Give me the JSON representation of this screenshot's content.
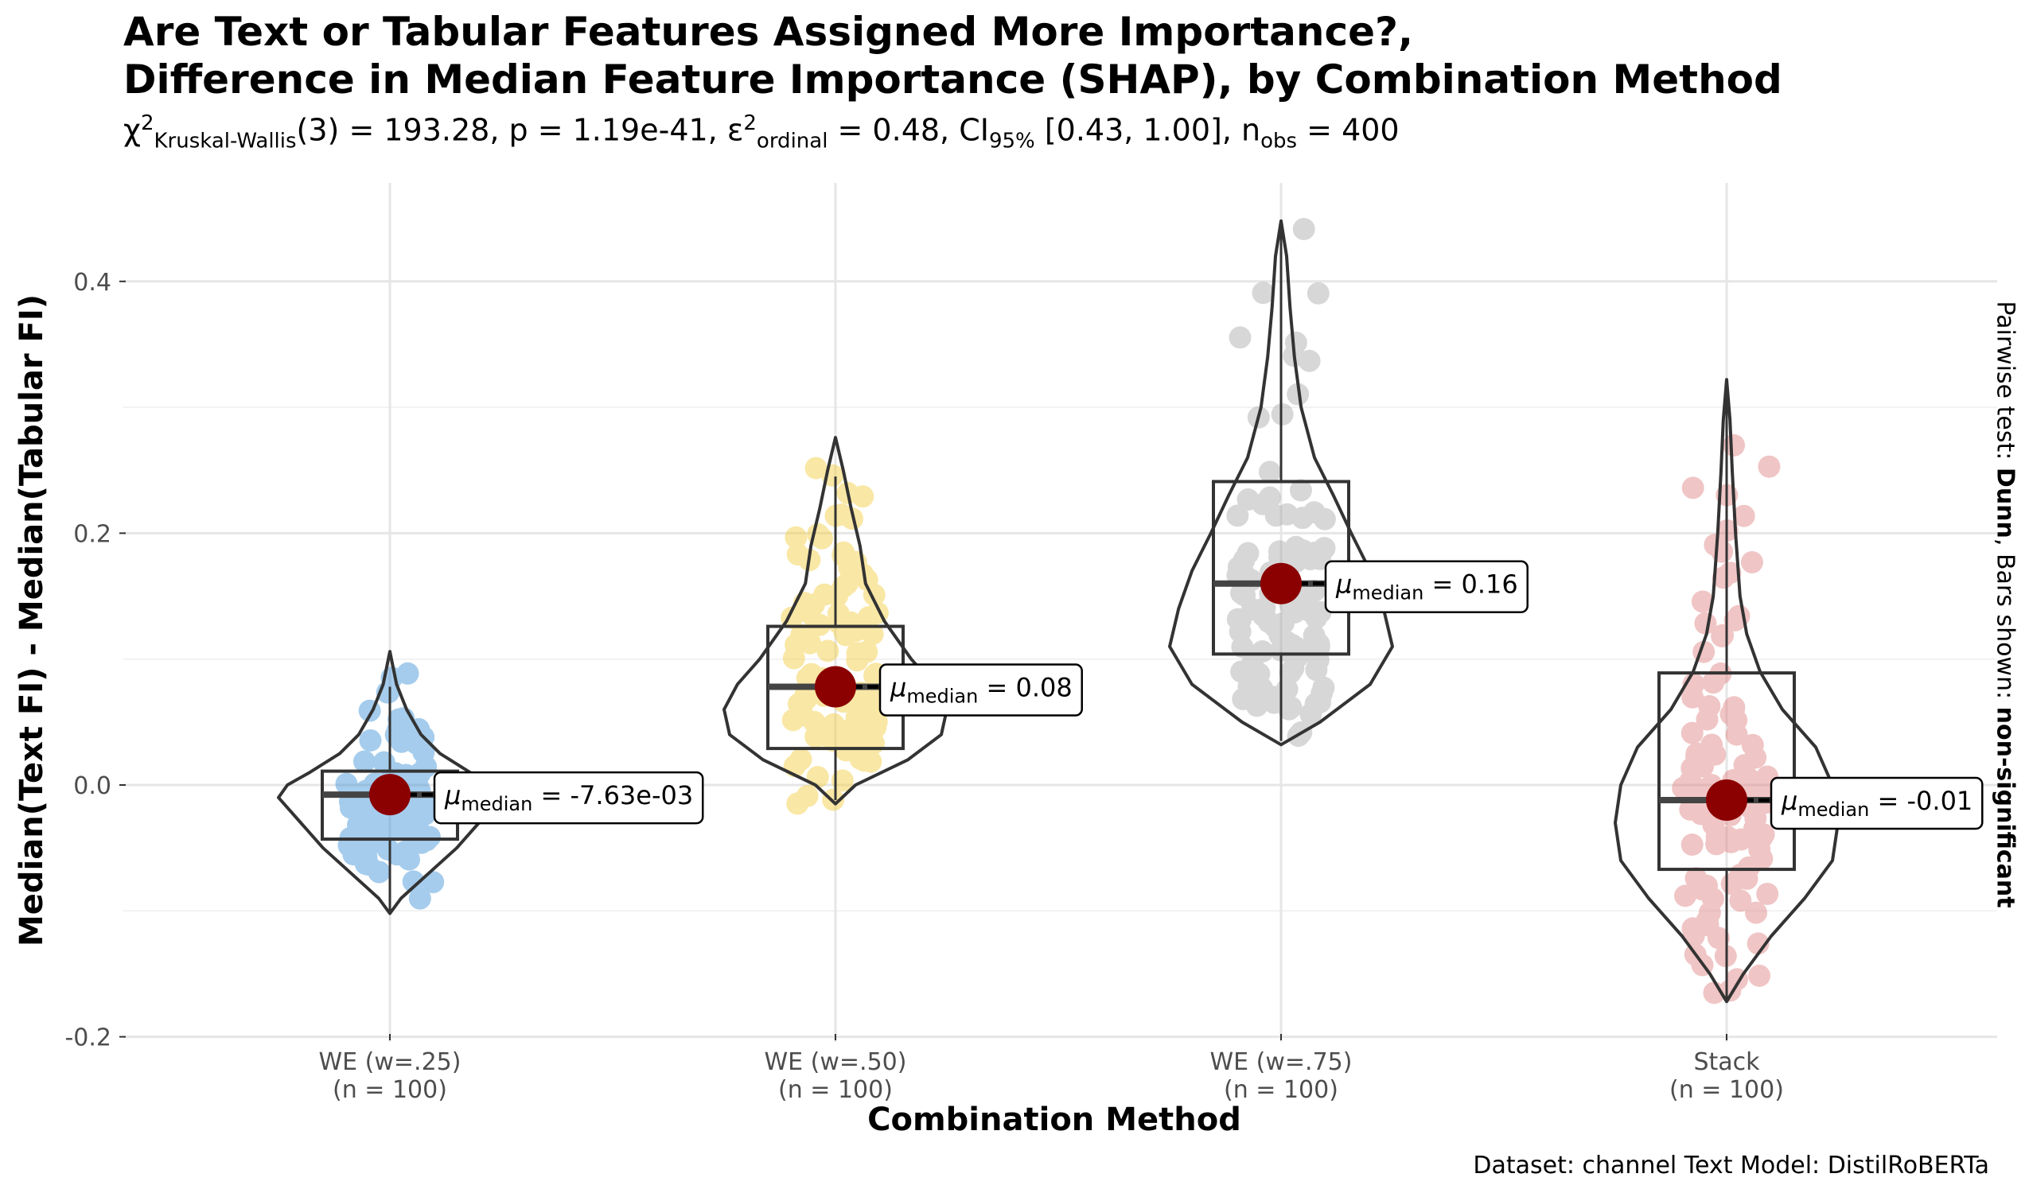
{
  "title_line1": "Are Text or Tabular Features Assigned More Importance?,",
  "title_line2": "Difference in Median Feature Importance (SHAP), by Combination Method",
  "stats": {
    "chi_base": "χ",
    "chi_sup": "2",
    "chi_sub": "Kruskal-Wallis",
    "chi_val": "(3) = 193.28, p = 1.19e-41, ",
    "eps_base": "ε",
    "eps_sup": "2",
    "eps_sub": "ordinal",
    "eps_val": " = 0.48, CI",
    "ci_sub": "95%",
    "ci_val": " [0.43, 1.00], n",
    "n_sub": "obs",
    "n_val": " = 400"
  },
  "ylabel": "Median(Text FI) - Median(Tabular FI)",
  "xlabel": "Combination Method",
  "right_label": {
    "part1": "Pairwise test: ",
    "part2": "Dunn",
    "part3": ", Bars shown: ",
    "part4": "non-significant"
  },
  "caption": "Dataset:  channel Text Model:  DistilRoBERTa",
  "chart_data": {
    "type": "violin",
    "ylim": [
      -0.2,
      0.45
    ],
    "yticks": [
      -0.2,
      0.0,
      0.2,
      0.4
    ],
    "ytick_labels": [
      "-0.2",
      "0.0",
      "0.2",
      "0.4"
    ],
    "grid": true,
    "groups": [
      {
        "name": "WE (w=.25)",
        "n_label": "(n = 100)",
        "color": "#3A8FD6",
        "median": -0.00763,
        "q1": -0.043,
        "q3": 0.011,
        "whisker_low": -0.1,
        "whisker_high": 0.078,
        "min": -0.102,
        "max": 0.106,
        "label_sub": "median",
        "label_val": "= -7.63e-03",
        "density": [
          [
            -0.102,
            0.0
          ],
          [
            -0.09,
            0.1
          ],
          [
            -0.07,
            0.35
          ],
          [
            -0.05,
            0.6
          ],
          [
            -0.03,
            0.8
          ],
          [
            -0.01,
            1.0
          ],
          [
            0.0,
            0.92
          ],
          [
            0.01,
            0.72
          ],
          [
            0.025,
            0.45
          ],
          [
            0.04,
            0.28
          ],
          [
            0.06,
            0.15
          ],
          [
            0.08,
            0.06
          ],
          [
            0.106,
            0.0
          ]
        ]
      },
      {
        "name": "WE (w=.50)",
        "n_label": "(n = 100)",
        "color": "#F2CC3A",
        "median": 0.078,
        "q1": 0.029,
        "q3": 0.126,
        "whisker_low": -0.012,
        "whisker_high": 0.245,
        "min": -0.015,
        "max": 0.276,
        "label_sub": "median",
        "label_val": "= 0.08",
        "density": [
          [
            -0.015,
            0.0
          ],
          [
            0.0,
            0.18
          ],
          [
            0.02,
            0.65
          ],
          [
            0.04,
            0.95
          ],
          [
            0.06,
            1.0
          ],
          [
            0.08,
            0.88
          ],
          [
            0.1,
            0.68
          ],
          [
            0.13,
            0.44
          ],
          [
            0.16,
            0.27
          ],
          [
            0.19,
            0.22
          ],
          [
            0.22,
            0.14
          ],
          [
            0.25,
            0.07
          ],
          [
            0.276,
            0.0
          ]
        ]
      },
      {
        "name": "WE (w=.75)",
        "n_label": "(n = 100)",
        "color": "#A8A8A8",
        "median": 0.16,
        "q1": 0.104,
        "q3": 0.241,
        "whisker_low": 0.035,
        "whisker_high": 0.445,
        "min": 0.032,
        "max": 0.448,
        "label_sub": "median",
        "label_val": "= 0.16",
        "density": [
          [
            0.032,
            0.0
          ],
          [
            0.05,
            0.35
          ],
          [
            0.08,
            0.8
          ],
          [
            0.11,
            1.0
          ],
          [
            0.14,
            0.92
          ],
          [
            0.17,
            0.8
          ],
          [
            0.2,
            0.63
          ],
          [
            0.23,
            0.47
          ],
          [
            0.26,
            0.3
          ],
          [
            0.3,
            0.18
          ],
          [
            0.34,
            0.12
          ],
          [
            0.38,
            0.08
          ],
          [
            0.42,
            0.05
          ],
          [
            0.448,
            0.0
          ]
        ]
      },
      {
        "name": "Stack",
        "n_label": "(n = 100)",
        "color": "#E08080",
        "median": -0.012,
        "q1": -0.067,
        "q3": 0.089,
        "whisker_low": -0.17,
        "whisker_high": 0.32,
        "min": -0.172,
        "max": 0.322,
        "label_sub": "median",
        "label_val": "= -0.01",
        "density": [
          [
            -0.172,
            0.0
          ],
          [
            -0.15,
            0.15
          ],
          [
            -0.12,
            0.4
          ],
          [
            -0.09,
            0.7
          ],
          [
            -0.06,
            0.95
          ],
          [
            -0.03,
            1.0
          ],
          [
            0.0,
            0.95
          ],
          [
            0.03,
            0.8
          ],
          [
            0.06,
            0.5
          ],
          [
            0.09,
            0.3
          ],
          [
            0.12,
            0.18
          ],
          [
            0.15,
            0.12
          ],
          [
            0.2,
            0.08
          ],
          [
            0.25,
            0.05
          ],
          [
            0.29,
            0.03
          ],
          [
            0.322,
            0.0
          ]
        ]
      }
    ]
  }
}
